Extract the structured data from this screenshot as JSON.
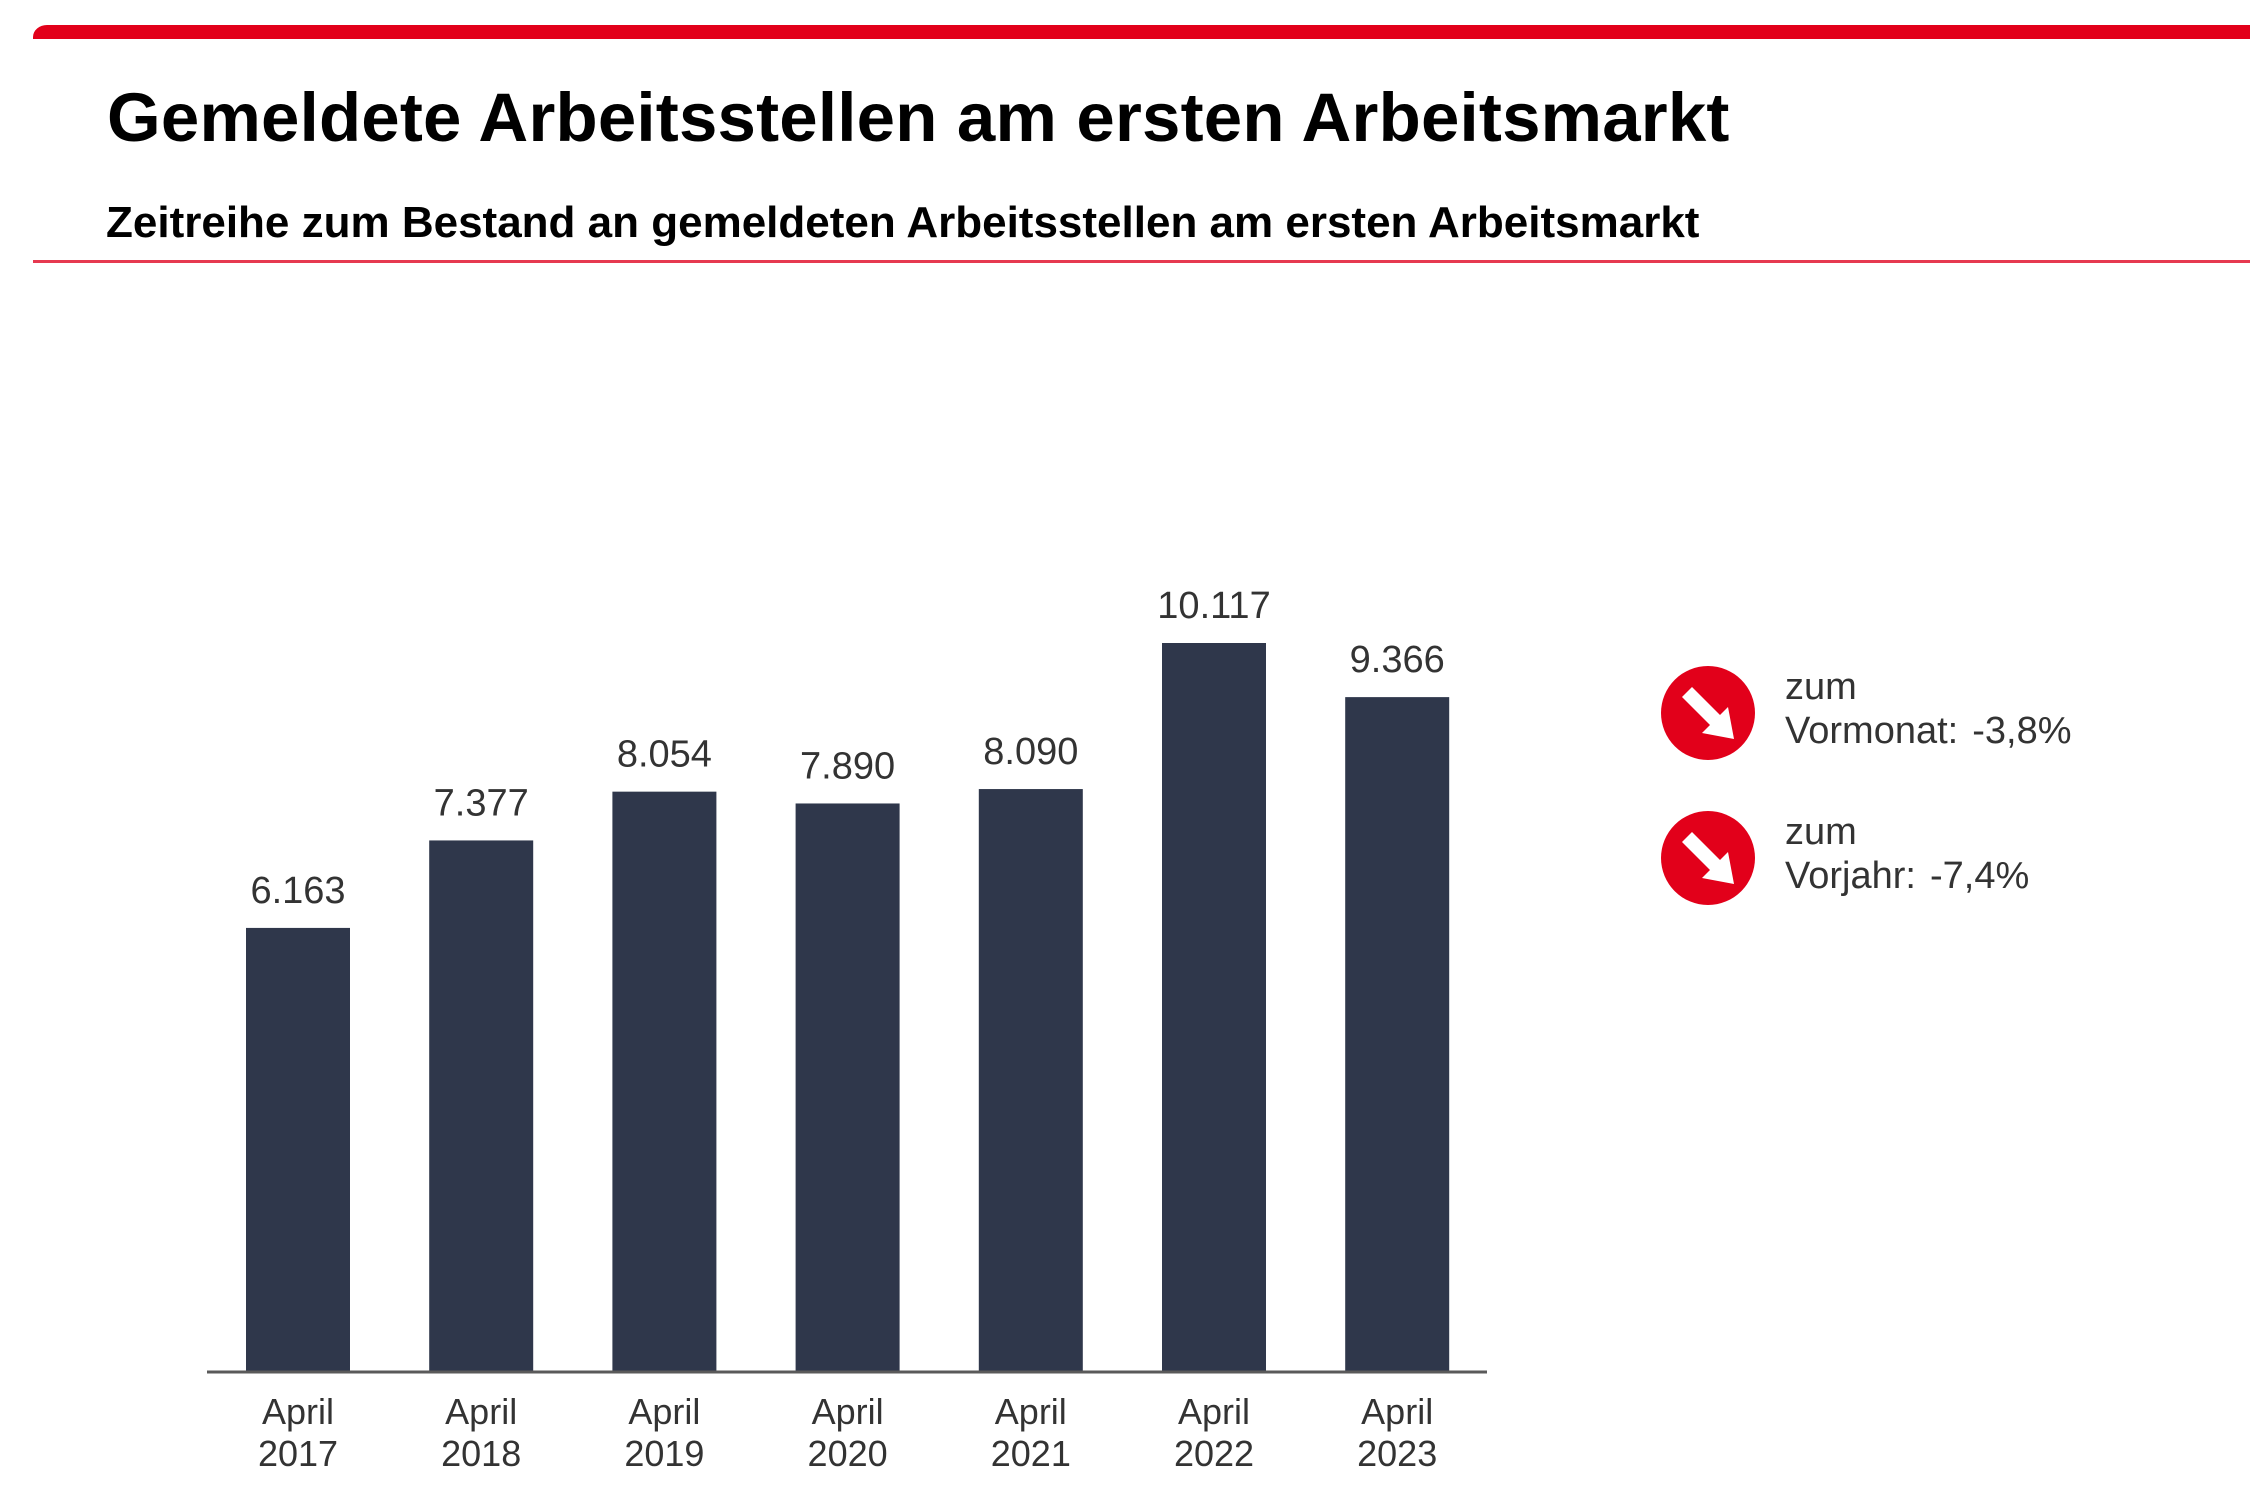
{
  "header": {
    "title": "Gemeldete Arbeitsstellen am ersten Arbeitsmarkt",
    "subtitle": "Zeitreihe zum Bestand an gemeldeten Arbeitsstellen am ersten Arbeitsmarkt"
  },
  "colors": {
    "accent_red": "#e2001a",
    "rule_red": "#e63950",
    "bar": "#2f374b",
    "text": "#333333"
  },
  "chart_data": {
    "type": "bar",
    "title": "Gemeldete Arbeitsstellen am ersten Arbeitsmarkt",
    "subtitle": "Zeitreihe zum Bestand an gemeldeten Arbeitsstellen am ersten Arbeitsmarkt",
    "xlabel": "",
    "ylabel": "",
    "categories": [
      "April 2017",
      "April 2018",
      "April 2019",
      "April 2020",
      "April 2021",
      "April 2022",
      "April 2023"
    ],
    "category_lines": [
      [
        "April",
        "2017"
      ],
      [
        "April",
        "2018"
      ],
      [
        "April",
        "2019"
      ],
      [
        "April",
        "2020"
      ],
      [
        "April",
        "2021"
      ],
      [
        "April",
        "2022"
      ],
      [
        "April",
        "2023"
      ]
    ],
    "values": [
      6163,
      7377,
      8054,
      7890,
      8090,
      10117,
      9366
    ],
    "value_labels": [
      "6.163",
      "7.377",
      "8.054",
      "7.890",
      "8.090",
      "10.117",
      "9.366"
    ],
    "ylim": [
      0,
      10117
    ],
    "grid": false,
    "legend": "none"
  },
  "indicators": [
    {
      "icon": "arrow-down-right-icon",
      "line1": "zum",
      "label": "Vormonat:",
      "value": "-3,8%",
      "trend": "down"
    },
    {
      "icon": "arrow-down-right-icon",
      "line1": "zum",
      "label": "Vorjahr:",
      "value": "-7,4%",
      "trend": "down"
    }
  ]
}
